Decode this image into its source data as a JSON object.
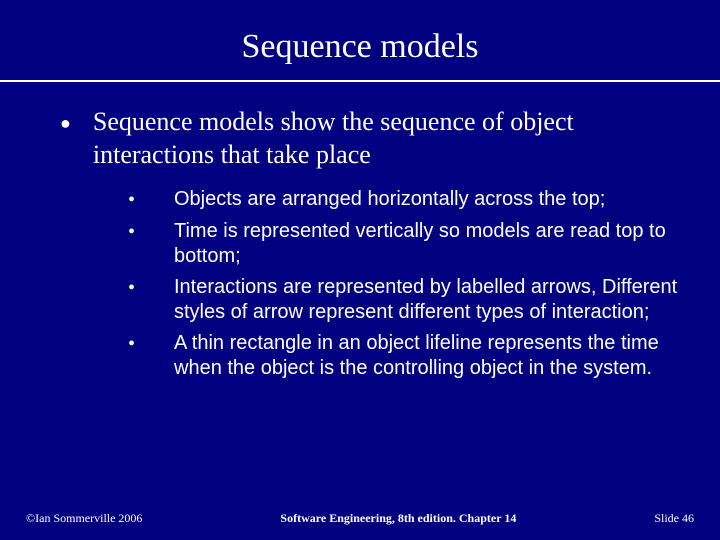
{
  "title": "Sequence models",
  "main_bullet": "Sequence models show the sequence of object interactions that take place",
  "sub_bullets": {
    "b0": "Objects are arranged horizontally across the top;",
    "b1": "Time is represented vertically so models are read top to bottom;",
    "b2": "Interactions are represented by labelled arrows, Different styles of arrow represent different types of interaction;",
    "b3": "A thin rectangle in an object lifeline represents the time when the object is the controlling object in the system."
  },
  "footer": {
    "left": "©Ian Sommerville 2006",
    "center": "Software Engineering, 8th edition. Chapter 14",
    "right": "Slide 46"
  },
  "colors": {
    "background": "#000080",
    "text": "#ffffff",
    "divider": "#ffffff"
  }
}
